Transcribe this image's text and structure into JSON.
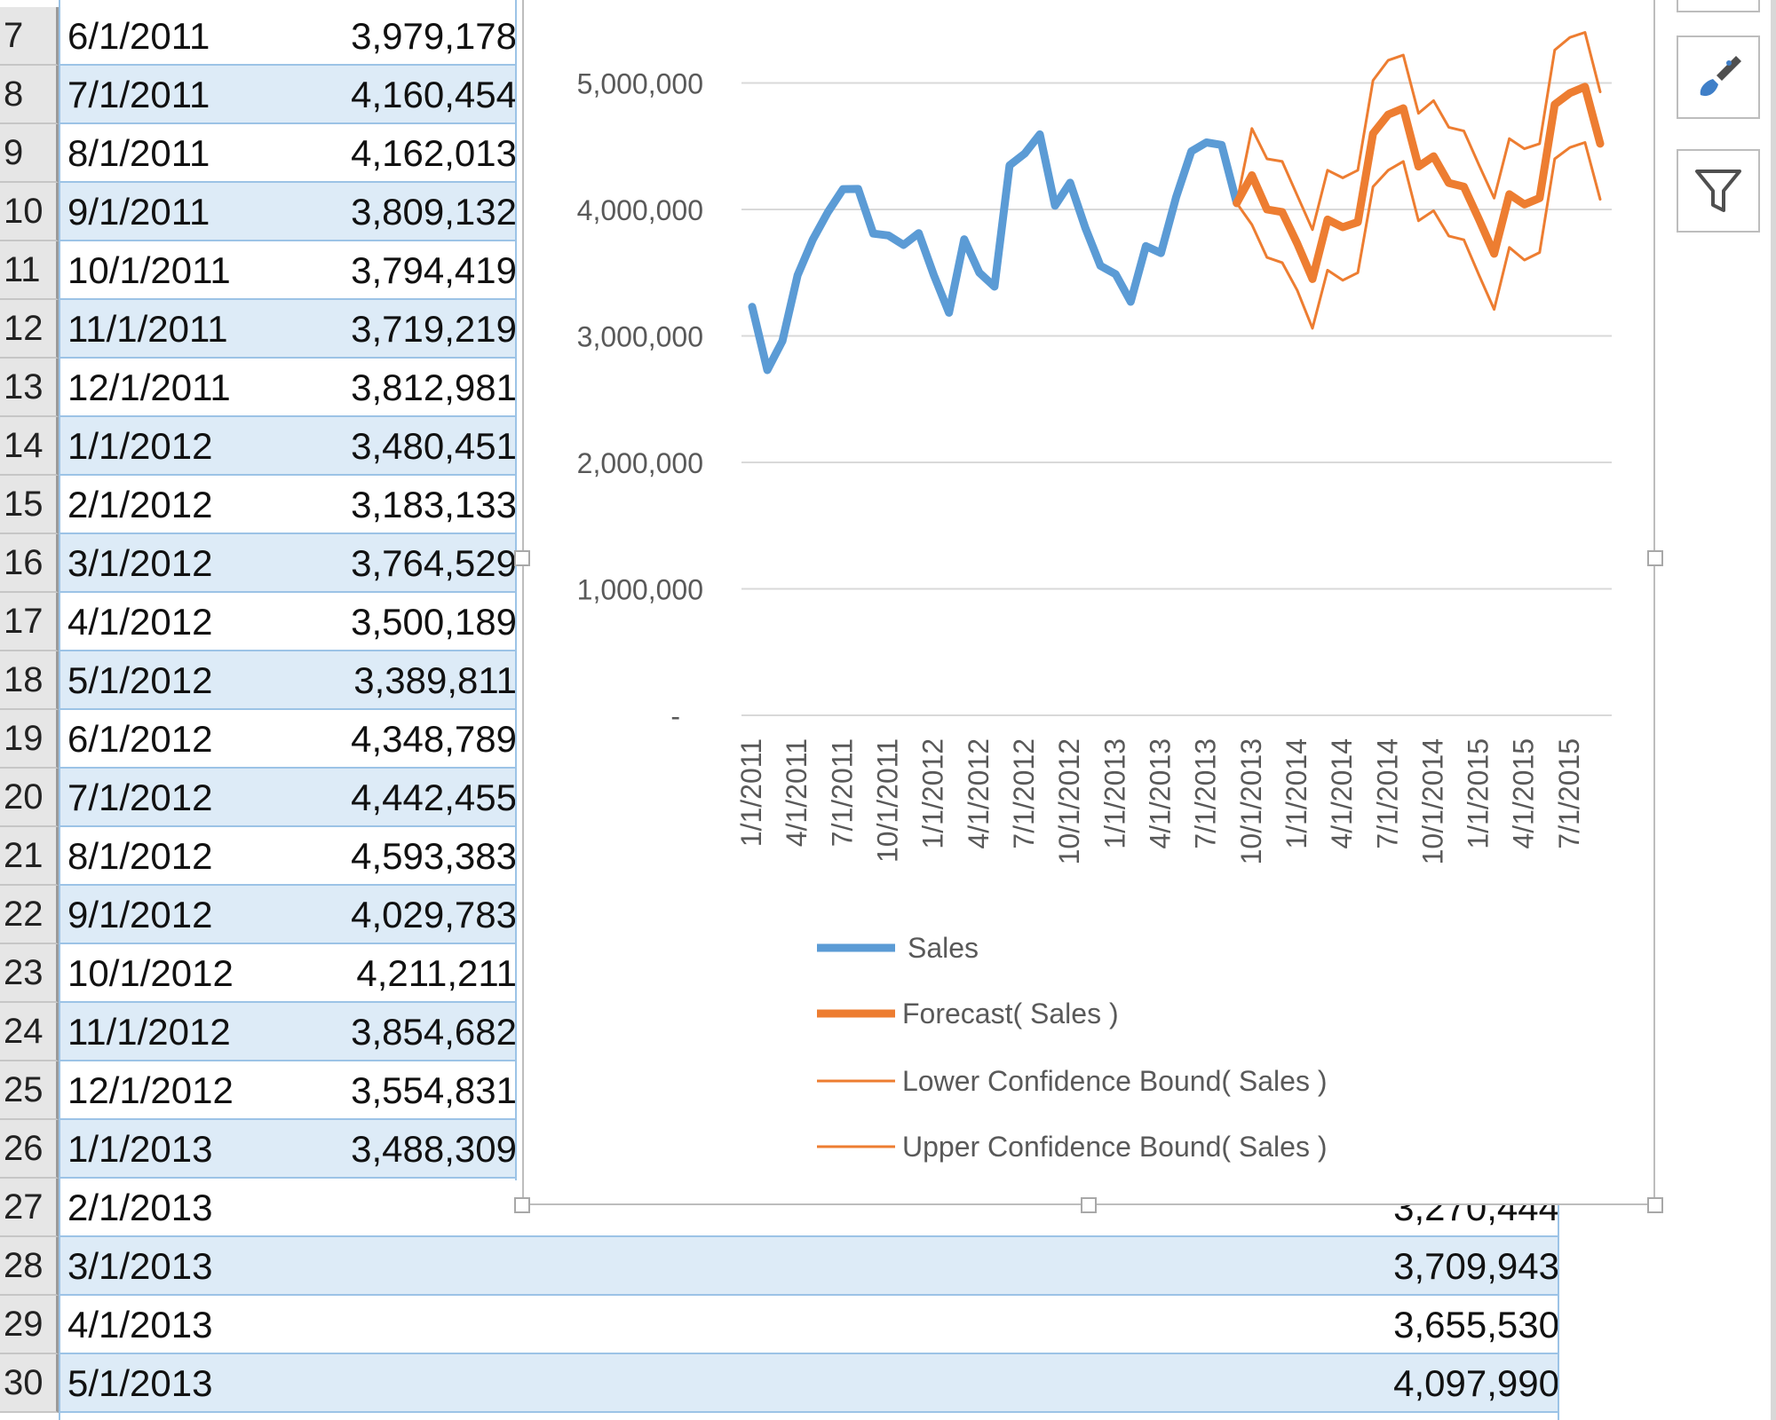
{
  "rows": [
    {
      "num": "7",
      "date": "6/1/2011",
      "sales": "3,979,178"
    },
    {
      "num": "8",
      "date": "7/1/2011",
      "sales": "4,160,454"
    },
    {
      "num": "9",
      "date": "8/1/2011",
      "sales": "4,162,013"
    },
    {
      "num": "10",
      "date": "9/1/2011",
      "sales": "3,809,132"
    },
    {
      "num": "11",
      "date": "10/1/2011",
      "sales": "3,794,419"
    },
    {
      "num": "12",
      "date": "11/1/2011",
      "sales": "3,719,219"
    },
    {
      "num": "13",
      "date": "12/1/2011",
      "sales": "3,812,981"
    },
    {
      "num": "14",
      "date": "1/1/2012",
      "sales": "3,480,451"
    },
    {
      "num": "15",
      "date": "2/1/2012",
      "sales": "3,183,133"
    },
    {
      "num": "16",
      "date": "3/1/2012",
      "sales": "3,764,529"
    },
    {
      "num": "17",
      "date": "4/1/2012",
      "sales": "3,500,189"
    },
    {
      "num": "18",
      "date": "5/1/2012",
      "sales": "3,389,811"
    },
    {
      "num": "19",
      "date": "6/1/2012",
      "sales": "4,348,789"
    },
    {
      "num": "20",
      "date": "7/1/2012",
      "sales": "4,442,455"
    },
    {
      "num": "21",
      "date": "8/1/2012",
      "sales": "4,593,383"
    },
    {
      "num": "22",
      "date": "9/1/2012",
      "sales": "4,029,783"
    },
    {
      "num": "23",
      "date": "10/1/2012",
      "sales": "4,211,211"
    },
    {
      "num": "24",
      "date": "11/1/2012",
      "sales": "3,854,682"
    },
    {
      "num": "25",
      "date": "12/1/2012",
      "sales": "3,554,831"
    },
    {
      "num": "26",
      "date": "1/1/2013",
      "sales": "3,488,309"
    },
    {
      "num": "27",
      "date": "2/1/2013",
      "sales": "3,270,444"
    },
    {
      "num": "28",
      "date": "3/1/2013",
      "sales": "3,709,943"
    },
    {
      "num": "29",
      "date": "4/1/2013",
      "sales": "3,655,530"
    },
    {
      "num": "30",
      "date": "5/1/2013",
      "sales": "4,097,990"
    }
  ],
  "side_buttons": [
    {
      "icon": "chart-styles-brush-icon"
    },
    {
      "icon": "chart-filter-funnel-icon"
    }
  ],
  "chart_data": {
    "type": "line",
    "title": "",
    "ylim": [
      0,
      5500000
    ],
    "y_ticks": [
      "-",
      "1,000,000",
      "2,000,000",
      "3,000,000",
      "4,000,000",
      "5,000,000"
    ],
    "x_tick_labels": [
      "1/1/2011",
      "4/1/2011",
      "7/1/2011",
      "10/1/2011",
      "1/1/2012",
      "4/1/2012",
      "7/1/2012",
      "10/1/2012",
      "1/1/2013",
      "4/1/2013",
      "7/1/2013",
      "10/1/2013",
      "1/1/2014",
      "4/1/2014",
      "7/1/2014",
      "10/1/2014",
      "1/1/2015",
      "4/1/2015",
      "7/1/2015"
    ],
    "grid": true,
    "legend_position": "bottom",
    "x": [
      "1/1/2011",
      "2/1/2011",
      "3/1/2011",
      "4/1/2011",
      "5/1/2011",
      "6/1/2011",
      "7/1/2011",
      "8/1/2011",
      "9/1/2011",
      "10/1/2011",
      "11/1/2011",
      "12/1/2011",
      "1/1/2012",
      "2/1/2012",
      "3/1/2012",
      "4/1/2012",
      "5/1/2012",
      "6/1/2012",
      "7/1/2012",
      "8/1/2012",
      "9/1/2012",
      "10/1/2012",
      "11/1/2012",
      "12/1/2012",
      "1/1/2013",
      "2/1/2013",
      "3/1/2013",
      "4/1/2013",
      "5/1/2013",
      "6/1/2013",
      "7/1/2013",
      "8/1/2013",
      "9/1/2013",
      "10/1/2013",
      "11/1/2013",
      "12/1/2013",
      "1/1/2014",
      "2/1/2014",
      "3/1/2014",
      "4/1/2014",
      "5/1/2014",
      "6/1/2014",
      "7/1/2014",
      "8/1/2014",
      "9/1/2014",
      "10/1/2014",
      "11/1/2014",
      "12/1/2014",
      "1/1/2015",
      "2/1/2015",
      "3/1/2015",
      "4/1/2015",
      "5/1/2015",
      "6/1/2015",
      "7/1/2015",
      "8/1/2015",
      "9/1/2015"
    ],
    "series": [
      {
        "name": "Sales",
        "color": "#5b9bd5",
        "width": 3,
        "values": [
          3230000,
          2730000,
          2960000,
          3480000,
          3760000,
          3979178,
          4160454,
          4162013,
          3809132,
          3794419,
          3719219,
          3812981,
          3480451,
          3183133,
          3764529,
          3500189,
          3389811,
          4348789,
          4442455,
          4593383,
          4029783,
          4211211,
          3854682,
          3554831,
          3488309,
          3270444,
          3709943,
          3655530,
          4097990,
          4460000,
          4530000,
          4510000,
          4050000,
          null,
          null,
          null,
          null,
          null,
          null,
          null,
          null,
          null,
          null,
          null,
          null,
          null,
          null,
          null,
          null,
          null,
          null,
          null,
          null,
          null,
          null,
          null,
          null
        ]
      },
      {
        "name": "Forecast( Sales )",
        "color": "#ed7d31",
        "width": 3,
        "values": [
          null,
          null,
          null,
          null,
          null,
          null,
          null,
          null,
          null,
          null,
          null,
          null,
          null,
          null,
          null,
          null,
          null,
          null,
          null,
          null,
          null,
          null,
          null,
          null,
          null,
          null,
          null,
          null,
          null,
          null,
          null,
          null,
          4050000,
          4270000,
          4000000,
          3980000,
          3730000,
          3450000,
          3920000,
          3860000,
          3900000,
          4600000,
          4750000,
          4800000,
          4340000,
          4420000,
          4210000,
          4180000,
          3920000,
          3650000,
          4120000,
          4040000,
          4090000,
          4830000,
          4920000,
          4970000,
          4520000
        ]
      },
      {
        "name": "Lower Confidence Bound( Sales )",
        "color": "#ed7d31",
        "width": 1,
        "values": [
          null,
          null,
          null,
          null,
          null,
          null,
          null,
          null,
          null,
          null,
          null,
          null,
          null,
          null,
          null,
          null,
          null,
          null,
          null,
          null,
          null,
          null,
          null,
          null,
          null,
          null,
          null,
          null,
          null,
          null,
          null,
          null,
          4050000,
          3880000,
          3620000,
          3580000,
          3360000,
          3060000,
          3520000,
          3440000,
          3500000,
          4180000,
          4310000,
          4380000,
          3910000,
          3990000,
          3790000,
          3760000,
          3480000,
          3210000,
          3700000,
          3600000,
          3660000,
          4400000,
          4490000,
          4530000,
          4080000
        ]
      },
      {
        "name": "Upper Confidence Bound( Sales )",
        "color": "#ed7d31",
        "width": 1,
        "values": [
          null,
          null,
          null,
          null,
          null,
          null,
          null,
          null,
          null,
          null,
          null,
          null,
          null,
          null,
          null,
          null,
          null,
          null,
          null,
          null,
          null,
          null,
          null,
          null,
          null,
          null,
          null,
          null,
          null,
          null,
          null,
          null,
          4050000,
          4640000,
          4400000,
          4380000,
          4110000,
          3840000,
          4310000,
          4250000,
          4310000,
          5020000,
          5180000,
          5220000,
          4760000,
          4860000,
          4650000,
          4620000,
          4350000,
          4090000,
          4560000,
          4480000,
          4520000,
          5260000,
          5360000,
          5400000,
          4930000
        ]
      }
    ]
  }
}
